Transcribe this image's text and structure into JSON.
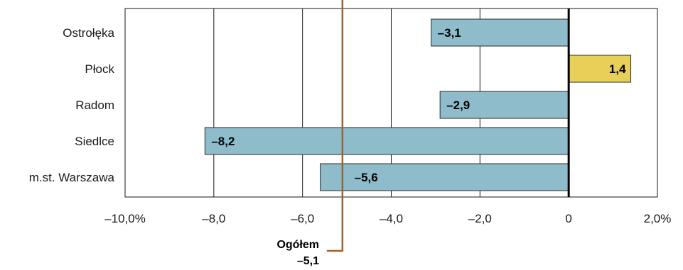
{
  "chart_data": {
    "type": "bar",
    "orientation": "horizontal",
    "categories": [
      "Ostrołęka",
      "Płock",
      "Radom",
      "Siedlce",
      "m.st. Warszawa"
    ],
    "values": [
      -3.1,
      1.4,
      -2.9,
      -8.2,
      -5.6
    ],
    "value_labels": [
      "–3,1",
      "1,4",
      "–2,9",
      "–8,2",
      "–5,6"
    ],
    "xlim": [
      -10,
      2
    ],
    "x_ticks": [
      -10,
      -8,
      -6,
      -4,
      -2,
      0,
      2
    ],
    "x_tick_labels": [
      "–10,0%",
      "–8,0",
      "–6,0",
      "–4,0",
      "–2,0",
      "0",
      "2,0%"
    ],
    "grid": "vertical",
    "reference_line": {
      "value": -5.1,
      "label": "Ogółem",
      "value_label": "–5,1",
      "color": "#a0622d"
    },
    "colors": {
      "negative": "#8fbccb",
      "positive": "#e8cf58",
      "bar_border": "#2a2a2a",
      "zero_line": "#000000"
    },
    "title": "",
    "xlabel": "",
    "ylabel": ""
  }
}
